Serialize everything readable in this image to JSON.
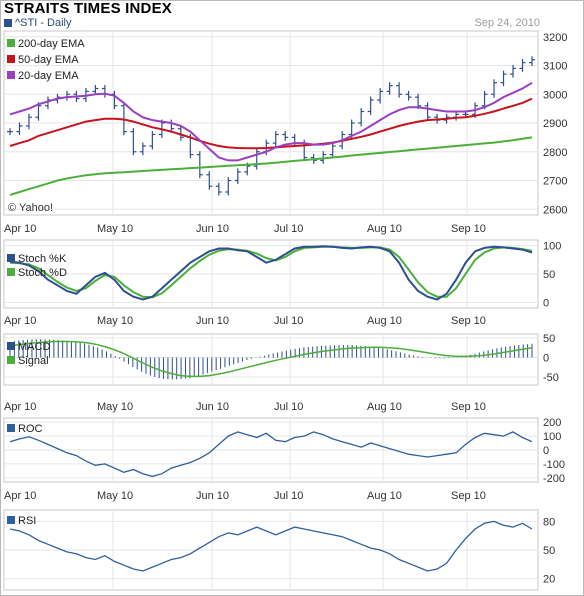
{
  "chart_data": {
    "title": "STRAITS TIMES INDEX",
    "subtitle": "^STI - Daily",
    "date": "Sep 24, 2010",
    "credit": "© Yahoo!",
    "x_labels": [
      "Apr 10",
      "May 10",
      "Jun 10",
      "Jul 10",
      "Aug 10",
      "Sep 10"
    ],
    "colors": {
      "price": "#2e4f8f",
      "ema200": "#4caf3a",
      "ema50": "#c8121d",
      "ema20": "#9a3fc0",
      "stoch_k": "#2e4f8f",
      "stoch_d": "#4caf3a",
      "macd": "#2e4f8f",
      "signal": "#4caf3a",
      "roc": "#2e5f9f",
      "rsi": "#2e5f9f"
    },
    "panels": [
      {
        "id": "price",
        "type": "ohlc",
        "legend": [
          "200-day EMA",
          "50-day EMA",
          "20-day EMA"
        ],
        "yticks": [
          2600,
          2700,
          2800,
          2900,
          3000,
          3100,
          3200
        ],
        "ylim": [
          2580,
          3220
        ],
        "series": {
          "close": [
            2870,
            2890,
            2920,
            2960,
            2980,
            2990,
            3000,
            2985,
            3010,
            3020,
            3000,
            2960,
            2870,
            2800,
            2820,
            2860,
            2900,
            2880,
            2850,
            2790,
            2720,
            2680,
            2660,
            2700,
            2730,
            2750,
            2800,
            2830,
            2860,
            2850,
            2830,
            2780,
            2770,
            2790,
            2820,
            2860,
            2900,
            2940,
            2980,
            3010,
            3030,
            3000,
            2990,
            2960,
            2920,
            2910,
            2920,
            2930,
            2930,
            2960,
            3000,
            3040,
            3070,
            3090,
            3110,
            3120
          ],
          "ema20": [
            2930,
            2940,
            2950,
            2965,
            2975,
            2985,
            2990,
            2992,
            2995,
            3000,
            3002,
            2995,
            2970,
            2940,
            2920,
            2910,
            2905,
            2900,
            2890,
            2870,
            2840,
            2810,
            2780,
            2770,
            2770,
            2780,
            2790,
            2800,
            2815,
            2825,
            2830,
            2830,
            2825,
            2825,
            2830,
            2840,
            2855,
            2870,
            2890,
            2910,
            2930,
            2945,
            2955,
            2955,
            2950,
            2945,
            2940,
            2940,
            2940,
            2945,
            2955,
            2970,
            2990,
            3005,
            3020,
            3040
          ],
          "ema50": [
            2820,
            2830,
            2840,
            2855,
            2865,
            2875,
            2885,
            2895,
            2905,
            2910,
            2915,
            2915,
            2912,
            2905,
            2895,
            2885,
            2878,
            2870,
            2860,
            2850,
            2838,
            2828,
            2820,
            2815,
            2813,
            2812,
            2812,
            2813,
            2815,
            2818,
            2820,
            2822,
            2825,
            2828,
            2832,
            2838,
            2845,
            2852,
            2860,
            2870,
            2880,
            2890,
            2898,
            2905,
            2910,
            2912,
            2915,
            2918,
            2920,
            2925,
            2932,
            2940,
            2950,
            2960,
            2970,
            2985
          ],
          "ema200": [
            2650,
            2660,
            2670,
            2680,
            2690,
            2700,
            2707,
            2713,
            2718,
            2722,
            2725,
            2727,
            2729,
            2731,
            2733,
            2735,
            2737,
            2739,
            2741,
            2743,
            2745,
            2747,
            2749,
            2751,
            2753,
            2755,
            2757,
            2759,
            2762,
            2765,
            2768,
            2771,
            2774,
            2777,
            2780,
            2783,
            2787,
            2790,
            2793,
            2796,
            2799,
            2802,
            2805,
            2808,
            2811,
            2814,
            2817,
            2820,
            2823,
            2826,
            2829,
            2832,
            2836,
            2840,
            2845,
            2850
          ]
        }
      },
      {
        "id": "stoch",
        "type": "line",
        "legend": [
          "Stoch %K",
          "Stoch %D"
        ],
        "yticks": [
          0,
          50,
          100
        ],
        "ylim": [
          -10,
          110
        ],
        "series": {
          "k": [
            72,
            70,
            65,
            55,
            40,
            30,
            20,
            15,
            30,
            45,
            52,
            40,
            20,
            10,
            5,
            10,
            25,
            40,
            55,
            70,
            80,
            90,
            95,
            95,
            92,
            90,
            80,
            70,
            75,
            85,
            95,
            98,
            98,
            99,
            98,
            96,
            95,
            97,
            98,
            96,
            90,
            70,
            40,
            20,
            10,
            5,
            15,
            40,
            70,
            90,
            96,
            98,
            97,
            95,
            93,
            88
          ],
          "d": [
            70,
            69,
            67,
            60,
            48,
            36,
            26,
            20,
            25,
            38,
            48,
            45,
            30,
            18,
            10,
            9,
            16,
            30,
            45,
            60,
            73,
            84,
            91,
            94,
            93,
            91,
            86,
            78,
            74,
            80,
            90,
            96,
            97,
            98,
            98,
            97,
            96,
            96,
            97,
            97,
            93,
            80,
            58,
            35,
            18,
            10,
            10,
            25,
            50,
            75,
            88,
            95,
            97,
            96,
            94,
            91
          ]
        }
      },
      {
        "id": "macd",
        "type": "histogram",
        "legend": [
          "MACD",
          "Signal"
        ],
        "yticks": [
          -50,
          0,
          50
        ],
        "ylim": [
          -70,
          60
        ],
        "series": {
          "macd": [
            40,
            44,
            46,
            47,
            46,
            45,
            43,
            40,
            35,
            28,
            18,
            5,
            -10,
            -25,
            -38,
            -48,
            -54,
            -56,
            -55,
            -52,
            -46,
            -38,
            -30,
            -22,
            -14,
            -6,
            0,
            6,
            12,
            17,
            22,
            26,
            28,
            30,
            31,
            32,
            32,
            30,
            28,
            25,
            20,
            14,
            8,
            3,
            0,
            -2,
            -2,
            0,
            4,
            10,
            16,
            22,
            27,
            30,
            33,
            35
          ],
          "signal": [
            30,
            33,
            36,
            38,
            40,
            41,
            41,
            40,
            38,
            34,
            28,
            20,
            10,
            -2,
            -14,
            -25,
            -34,
            -41,
            -46,
            -48,
            -48,
            -46,
            -42,
            -37,
            -31,
            -25,
            -19,
            -13,
            -7,
            -2,
            3,
            8,
            12,
            16,
            19,
            22,
            24,
            25,
            26,
            26,
            25,
            23,
            20,
            16,
            12,
            8,
            5,
            3,
            3,
            4,
            6,
            9,
            13,
            17,
            21,
            25
          ]
        }
      },
      {
        "id": "roc",
        "type": "line",
        "legend": [
          "ROC"
        ],
        "yticks": [
          -200,
          -100,
          0,
          100,
          200
        ],
        "ylim": [
          -230,
          230
        ],
        "series": {
          "roc": [
            60,
            80,
            95,
            70,
            40,
            10,
            -20,
            -40,
            -80,
            -110,
            -100,
            -130,
            -160,
            -140,
            -170,
            -190,
            -170,
            -130,
            -110,
            -90,
            -60,
            -20,
            40,
            100,
            130,
            110,
            90,
            120,
            70,
            60,
            90,
            100,
            130,
            110,
            80,
            60,
            40,
            20,
            50,
            30,
            10,
            -10,
            -30,
            -40,
            -50,
            -40,
            -30,
            -20,
            40,
            90,
            120,
            110,
            100,
            130,
            90,
            60
          ]
        }
      },
      {
        "id": "rsi",
        "type": "line",
        "legend": [
          "RSI"
        ],
        "yticks": [
          20,
          50,
          80
        ],
        "ylim": [
          8,
          92
        ],
        "series": {
          "rsi": [
            72,
            70,
            66,
            60,
            56,
            52,
            48,
            46,
            42,
            40,
            44,
            38,
            34,
            30,
            28,
            32,
            36,
            40,
            42,
            46,
            52,
            58,
            64,
            68,
            66,
            70,
            74,
            70,
            66,
            70,
            74,
            72,
            70,
            68,
            66,
            64,
            60,
            56,
            52,
            50,
            46,
            40,
            36,
            32,
            28,
            30,
            36,
            50,
            62,
            72,
            78,
            80,
            76,
            74,
            78,
            72
          ]
        }
      }
    ]
  }
}
